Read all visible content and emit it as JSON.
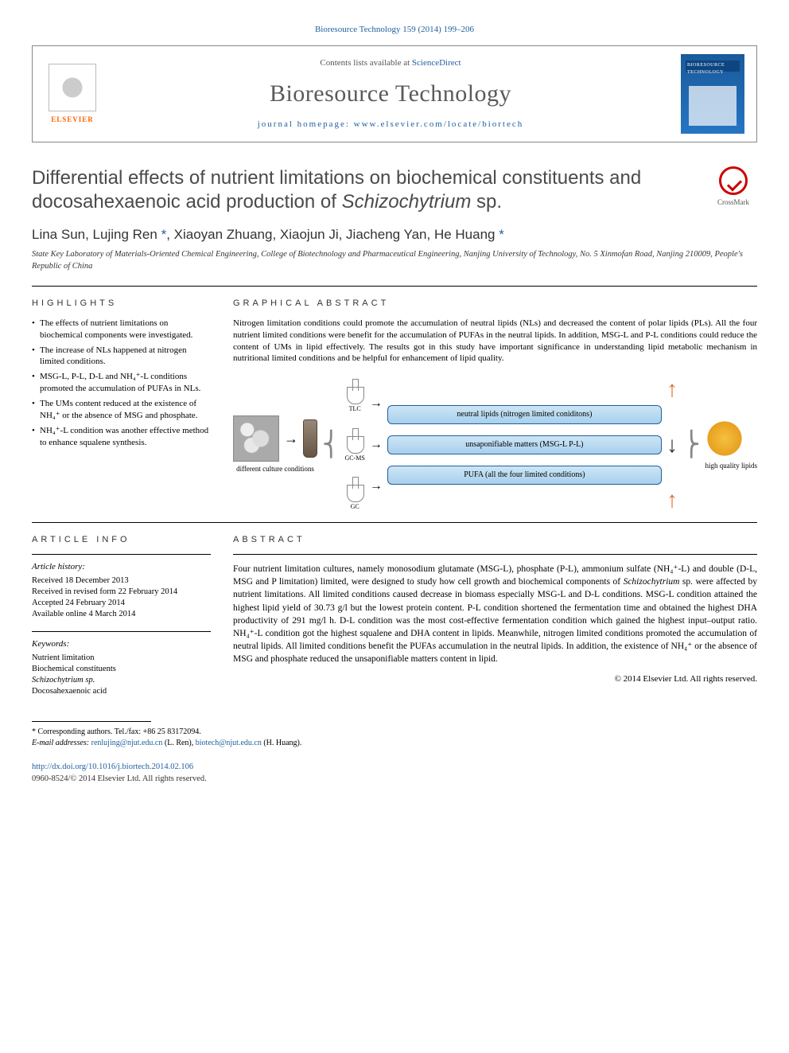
{
  "journal_ref": "Bioresource Technology 159 (2014) 199–206",
  "header": {
    "contents_prefix": "Contents lists available at ",
    "contents_link": "ScienceDirect",
    "journal_title": "Bioresource Technology",
    "homepage_prefix": "journal homepage: ",
    "homepage_url": "www.elsevier.com/locate/biortech",
    "publisher": "ELSEVIER",
    "cover_text": "BIORESOURCE TECHNOLOGY"
  },
  "crossmark_label": "CrossMark",
  "title_html": "Differential effects of nutrient limitations on biochemical constituents and docosahexaenoic acid production of <em>Schizochytrium</em> sp.",
  "authors_html": "Lina Sun, Lujing Ren <span class='corr'>*</span>, Xiaoyan Zhuang, Xiaojun Ji, Jiacheng Yan, He Huang <span class='corr'>*</span>",
  "affiliation": "State Key Laboratory of Materials-Oriented Chemical Engineering, College of Biotechnology and Pharmaceutical Engineering, Nanjing University of Technology, No. 5 Xinmofan Road, Nanjing 210009, People's Republic of China",
  "section_labels": {
    "highlights": "HIGHLIGHTS",
    "graphical": "GRAPHICAL ABSTRACT",
    "article_info": "ARTICLE INFO",
    "abstract": "ABSTRACT"
  },
  "highlights": [
    "The effects of nutrient limitations on biochemical components were investigated.",
    "The increase of NLs happened at nitrogen limited conditions.",
    "MSG-L, P-L, D-L and NH₄⁺-L conditions promoted the accumulation of PUFAs in NLs.",
    "The UMs content reduced at the existence of NH₄⁺ or the absence of MSG and phosphate.",
    "NH₄⁺-L condition was another effective method to enhance squalene synthesis."
  ],
  "graphical_abstract_text": "Nitrogen limitation conditions could promote the accumulation of neutral lipids (NLs) and decreased the content of polar lipids (PLs). All the four nutrient limited conditions were benefit for the accumulation of PUFAs in the neutral lipids. In addition, MSG-L and P-L conditions could reduce the content of UMs in lipid effectively. The results got in this study have important significance in understanding lipid metabolic mechanism in nutritional limited conditions and be helpful for enhancement of lipid quality.",
  "diagram": {
    "left_label": "different culture conditions",
    "flask_labels": [
      "TLC",
      "GC-MS",
      "GC"
    ],
    "boxes": [
      "neutral lipids (nitrogen limited coniditons)",
      "unsaponifiable matters (MSG-L P-L)",
      "PUFA (all the four limited conditions)"
    ],
    "arrows": [
      "up",
      "down",
      "up"
    ],
    "right_label": "high quality lipids",
    "box_bg_color": "#b8daf0",
    "box_border_color": "#2060a0",
    "arrow_up_color": "#e07030",
    "arrow_down_color": "#333333"
  },
  "article_info": {
    "history_heading": "Article history:",
    "history": [
      "Received 18 December 2013",
      "Received in revised form 22 February 2014",
      "Accepted 24 February 2014",
      "Available online 4 March 2014"
    ],
    "keywords_heading": "Keywords:",
    "keywords": [
      "Nutrient limitation",
      "Biochemical constituents",
      "Schizochytrium sp.",
      "Docosahexaenoic acid"
    ]
  },
  "abstract_html": "Four nutrient limitation cultures, namely monosodium glutamate (MSG-L), phosphate (P-L), ammonium sulfate (NH₄⁺-L) and double (D-L, MSG and P limitation) limited, were designed to study how cell growth and biochemical components of <em>Schizochytrium</em> sp. were affected by nutrient limitations. All limited conditions caused decrease in biomass especially MSG-L and D-L conditions. MSG-L condition attained the highest lipid yield of 30.73 g/l but the lowest protein content. P-L condition shortened the fermentation time and obtained the highest DHA productivity of 291 mg/l h. D-L condition was the most cost-effective fermentation condition which gained the highest input–output ratio. NH₄⁺-L condition got the highest squalene and DHA content in lipids. Meanwhile, nitrogen limited conditions promoted the accumulation of neutral lipids. All limited conditions benefit the PUFAs accumulation in the neutral lipids. In addition, the existence of NH₄⁺ or the absence of MSG and phosphate reduced the unsaponifiable matters content in lipid.",
  "copyright": "© 2014 Elsevier Ltd. All rights reserved.",
  "footnote": {
    "corresponding": "* Corresponding authors. Tel./fax: +86 25 83172094.",
    "email_label": "E-mail addresses: ",
    "emails": [
      {
        "addr": "renlujing@njut.edu.cn",
        "name": "(L. Ren)"
      },
      {
        "addr": "biotech@njut.edu.cn",
        "name": "(H. Huang)"
      }
    ]
  },
  "doi": "http://dx.doi.org/10.1016/j.biortech.2014.02.106",
  "issn_line": "0960-8524/© 2014 Elsevier Ltd. All rights reserved.",
  "colors": {
    "link": "#2060a0",
    "publisher": "#ff6600",
    "heading_text": "#4a4a4a",
    "rule": "#000000",
    "background": "#ffffff"
  },
  "typography": {
    "base_font": "Georgia, Times New Roman, serif",
    "sans_font": "Arial, sans-serif",
    "title_fontsize": 24,
    "journal_title_fontsize": 30,
    "authors_fontsize": 17,
    "body_fontsize": 11.5,
    "small_fontsize": 11
  }
}
